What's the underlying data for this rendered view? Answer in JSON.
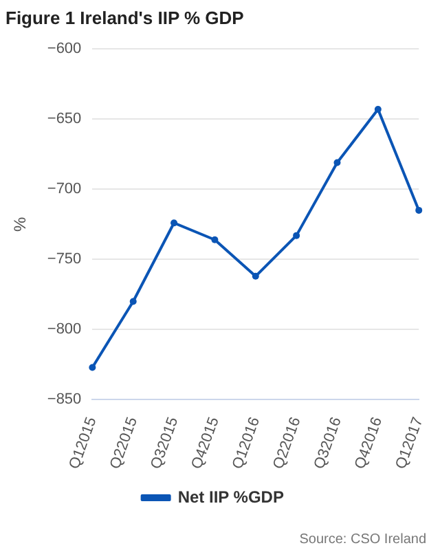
{
  "chart_data": {
    "type": "line",
    "title": "Figure 1 Ireland's IIP % GDP",
    "ylabel": "%",
    "categories": [
      "Q12015",
      "Q22015",
      "Q32015",
      "Q42015",
      "Q12016",
      "Q22016",
      "Q32016",
      "Q42016",
      "Q12017"
    ],
    "series": [
      {
        "name": "Net IIP %GDP",
        "color": "#0b55b5",
        "values": [
          -827,
          -780,
          -724,
          -736,
          -762,
          -733,
          -681,
          -643,
          -715
        ]
      }
    ],
    "ylim": [
      -850,
      -600
    ],
    "yticks": [
      -850,
      -800,
      -750,
      -700,
      -650,
      -600
    ],
    "grid": "y",
    "legend": "bottom",
    "marker": "circle",
    "line_style": "solid",
    "annotations": [
      "Source: CSO Ireland"
    ]
  }
}
